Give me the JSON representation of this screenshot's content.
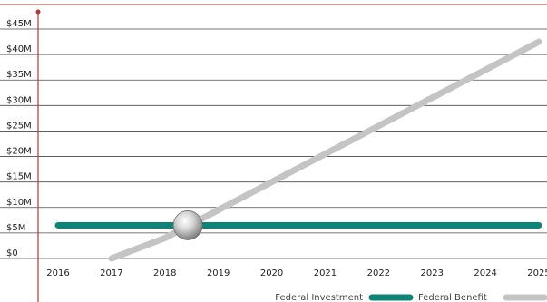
{
  "chart_data": {
    "type": "line",
    "title": "",
    "xlabel": "",
    "ylabel": "",
    "x": [
      2016,
      2017,
      2018,
      2019,
      2020,
      2021,
      2022,
      2023,
      2024,
      2025
    ],
    "ylim": [
      0,
      45
    ],
    "y_unit": "$M",
    "y_ticks": [
      0,
      5,
      10,
      15,
      20,
      25,
      30,
      35,
      40,
      45
    ],
    "y_tick_labels": [
      "$0",
      "$5M",
      "$10M",
      "$15M",
      "$20M",
      "$25M",
      "$30M",
      "$35M",
      "$40M",
      "$45M"
    ],
    "x_tick_labels": [
      "2016",
      "2017",
      "2018",
      "2019",
      "2020",
      "2021",
      "2022",
      "2023",
      "2024",
      "2025"
    ],
    "grid": "horizontal",
    "legend_position": "bottom-right",
    "series": [
      {
        "name": "Federal Investment",
        "color": "#0e8478",
        "points": [
          [
            2016,
            6.5
          ],
          [
            2025,
            6.5
          ]
        ]
      },
      {
        "name": "Federal Benefit",
        "color": "#c4c4c4",
        "points": [
          [
            2017,
            0
          ],
          [
            2018,
            4
          ],
          [
            2019,
            9.5
          ],
          [
            2020,
            15
          ],
          [
            2021,
            20.5
          ],
          [
            2022,
            26
          ],
          [
            2023,
            31.5
          ],
          [
            2024,
            37
          ],
          [
            2025,
            42.5
          ]
        ]
      }
    ],
    "annotation": {
      "type": "breakeven-marker",
      "x": 2018.43,
      "y": 6.5
    }
  }
}
